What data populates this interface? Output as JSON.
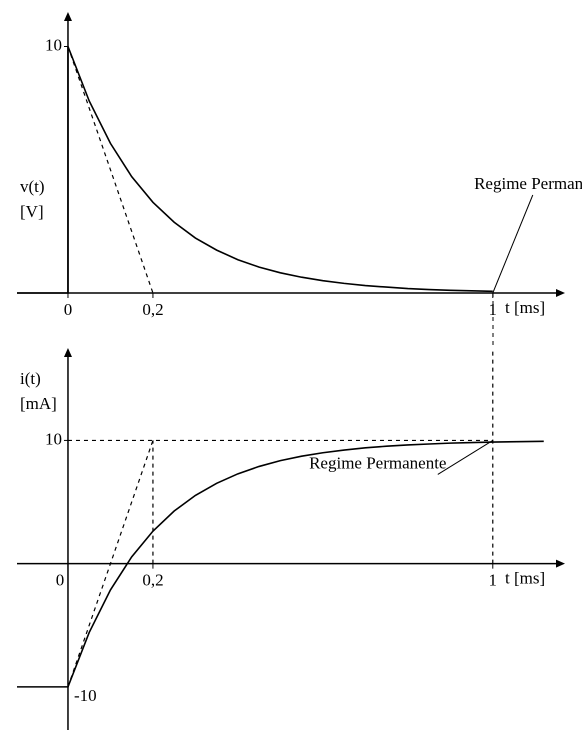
{
  "chart_data": [
    {
      "type": "line",
      "ylabel": [
        "v(t)",
        "[V]"
      ],
      "xlabel": "t [ms]",
      "xlim": [
        -0.12,
        1.17
      ],
      "ylim": [
        0,
        11.4
      ],
      "xticks": [
        0,
        {
          "value": 0.2,
          "label": "0,2"
        },
        1
      ],
      "yticks": [
        10
      ],
      "series": [
        {
          "color": "#000000",
          "dash": false,
          "x": [
            -0.12,
            0,
            0,
            0.05,
            0.1,
            0.15,
            0.2,
            0.25,
            0.3,
            0.35,
            0.4,
            0.45,
            0.5,
            0.55,
            0.6,
            0.65,
            0.7,
            0.75,
            0.8,
            0.85,
            0.9,
            0.95,
            1.0
          ],
          "values": [
            0,
            0,
            10,
            7.79,
            6.07,
            4.72,
            3.68,
            2.87,
            2.23,
            1.74,
            1.35,
            1.05,
            0.82,
            0.64,
            0.5,
            0.39,
            0.3,
            0.24,
            0.18,
            0.14,
            0.11,
            0.09,
            0.07
          ]
        },
        {
          "color": "#000000",
          "dash": true,
          "x": [
            0,
            0.2
          ],
          "values": [
            10,
            0
          ]
        }
      ],
      "annotations": [
        {
          "text": "Regime Permanente",
          "x": 1,
          "y": 0
        }
      ]
    },
    {
      "type": "line",
      "ylabel": [
        "i(t)",
        "[mA]"
      ],
      "xlabel": "t [ms]",
      "xlim": [
        -0.12,
        1.17
      ],
      "ylim": [
        -13.5,
        17.5
      ],
      "xticks": [
        0,
        {
          "value": 0.2,
          "label": "0,2"
        },
        1
      ],
      "yticks": [
        10,
        -10
      ],
      "series": [
        {
          "color": "#000000",
          "dash": false,
          "x": [
            -0.12,
            0,
            0.05,
            0.1,
            0.15,
            0.2,
            0.25,
            0.3,
            0.35,
            0.4,
            0.45,
            0.5,
            0.55,
            0.6,
            0.65,
            0.7,
            0.75,
            0.8,
            0.85,
            0.9,
            0.95,
            1.0,
            1.12
          ],
          "values": [
            -10,
            -10,
            -5.58,
            -2.13,
            0.55,
            2.64,
            4.27,
            5.54,
            6.52,
            7.29,
            7.89,
            8.36,
            8.72,
            9.0,
            9.22,
            9.4,
            9.53,
            9.63,
            9.71,
            9.78,
            9.83,
            9.87,
            9.93
          ]
        },
        {
          "color": "#000000",
          "dash": true,
          "x": [
            0,
            0.2
          ],
          "values": [
            -10,
            10
          ]
        },
        {
          "color": "#000000",
          "dash": true,
          "x": [
            0,
            1
          ],
          "values": [
            10,
            10
          ]
        },
        {
          "color": "#000000",
          "dash": true,
          "x": [
            0.2,
            0.2
          ],
          "values": [
            0,
            10
          ]
        },
        {
          "color": "#000000",
          "dash": true,
          "x": [
            1,
            1
          ],
          "values": [
            0,
            17.5
          ]
        }
      ],
      "annotations": [
        {
          "text": "Regime Permanente",
          "x": 1,
          "y": 10
        }
      ]
    }
  ]
}
